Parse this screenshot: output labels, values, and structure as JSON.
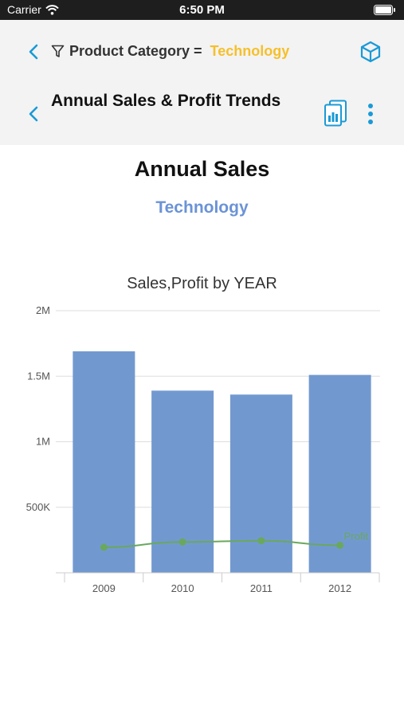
{
  "status_bar": {
    "carrier": "Carrier",
    "time": "6:50 PM"
  },
  "header": {
    "filter_label": "Product Category =",
    "filter_value": "Technology",
    "title": "Annual Sales & Profit Trends"
  },
  "report": {
    "title": "Annual Sales",
    "subtitle": "Technology"
  },
  "colors": {
    "accent": "#1a9ad6",
    "filter_value": "#f6c02a",
    "subtitle": "#6b93d6",
    "bar": "#7299cf",
    "line": "#6aa85e"
  },
  "chart_data": {
    "type": "bar",
    "title": "Sales,Profit by YEAR",
    "categories": [
      "2009",
      "2010",
      "2011",
      "2012"
    ],
    "ylim": [
      0,
      2000000
    ],
    "ytick_labels": [
      "500K",
      "1M",
      "1.5M",
      "2M"
    ],
    "grid": true,
    "series": [
      {
        "name": "Sales",
        "type": "bar",
        "values": [
          1690000,
          1390000,
          1360000,
          1510000
        ]
      },
      {
        "name": "Profit",
        "type": "line",
        "values": [
          195000,
          235000,
          245000,
          210000
        ]
      }
    ]
  }
}
